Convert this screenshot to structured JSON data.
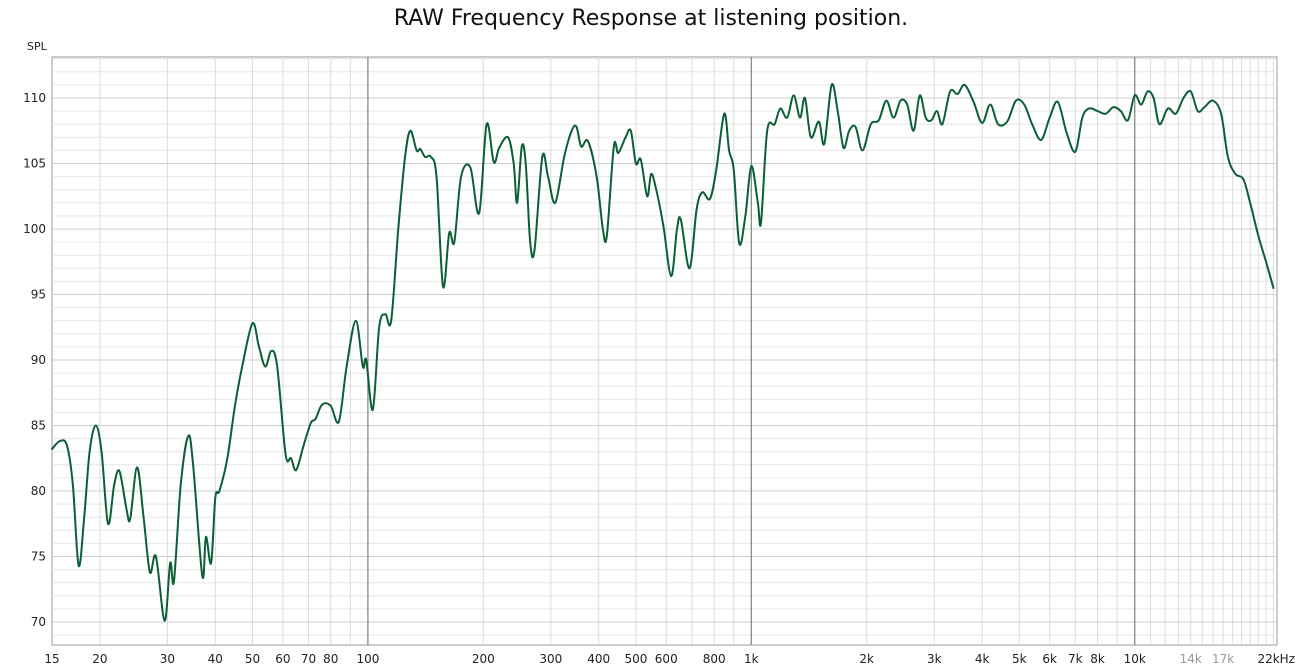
{
  "chart_data": {
    "type": "line",
    "title": "RAW Frequency Response at listening position.",
    "ylabel": "SPL",
    "xlabel": "",
    "xscale": "log",
    "xlim": [
      15,
      23500
    ],
    "ylim": [
      68,
      113
    ],
    "grid": true,
    "yticks": [
      70,
      75,
      80,
      85,
      90,
      95,
      100,
      105,
      110
    ],
    "xtick_labels": [
      {
        "value": 15,
        "label": "15",
        "muted": false
      },
      {
        "value": 20,
        "label": "20",
        "muted": false
      },
      {
        "value": 30,
        "label": "30",
        "muted": false
      },
      {
        "value": 40,
        "label": "40",
        "muted": false
      },
      {
        "value": 50,
        "label": "50",
        "muted": false
      },
      {
        "value": 60,
        "label": "60",
        "muted": false
      },
      {
        "value": 70,
        "label": "70",
        "muted": false
      },
      {
        "value": 80,
        "label": "80",
        "muted": false
      },
      {
        "value": 100,
        "label": "100",
        "muted": false
      },
      {
        "value": 200,
        "label": "200",
        "muted": false
      },
      {
        "value": 300,
        "label": "300",
        "muted": false
      },
      {
        "value": 400,
        "label": "400",
        "muted": false
      },
      {
        "value": 500,
        "label": "500",
        "muted": false
      },
      {
        "value": 600,
        "label": "600",
        "muted": false
      },
      {
        "value": 800,
        "label": "800",
        "muted": false
      },
      {
        "value": 1000,
        "label": "1k",
        "muted": false
      },
      {
        "value": 2000,
        "label": "2k",
        "muted": false
      },
      {
        "value": 3000,
        "label": "3k",
        "muted": false
      },
      {
        "value": 4000,
        "label": "4k",
        "muted": false
      },
      {
        "value": 5000,
        "label": "5k",
        "muted": false
      },
      {
        "value": 6000,
        "label": "6k",
        "muted": false
      },
      {
        "value": 7000,
        "label": "7k",
        "muted": false
      },
      {
        "value": 8000,
        "label": "8k",
        "muted": false
      },
      {
        "value": 10000,
        "label": "10k",
        "muted": false
      },
      {
        "value": 14000,
        "label": "14k",
        "muted": true
      },
      {
        "value": 17000,
        "label": "17k",
        "muted": true
      },
      {
        "value": 22000,
        "label": "22kHz",
        "muted": false
      }
    ],
    "line_color": "#0b5e36",
    "series": [
      {
        "name": "",
        "points": [
          [
            15,
            83.2
          ],
          [
            15.7,
            83.8
          ],
          [
            16.4,
            83.5
          ],
          [
            17.0,
            80.5
          ],
          [
            17.6,
            74.3
          ],
          [
            18.2,
            78.0
          ],
          [
            18.8,
            83.0
          ],
          [
            19.5,
            85.0
          ],
          [
            20.2,
            83.0
          ],
          [
            21.0,
            77.5
          ],
          [
            21.8,
            80.5
          ],
          [
            22.5,
            81.5
          ],
          [
            23.5,
            78.5
          ],
          [
            24.0,
            77.9
          ],
          [
            25.0,
            81.8
          ],
          [
            26.0,
            78.0
          ],
          [
            27.0,
            73.8
          ],
          [
            28.0,
            75.0
          ],
          [
            29.5,
            70.1
          ],
          [
            30.5,
            74.5
          ],
          [
            31.2,
            73.1
          ],
          [
            32.5,
            80.5
          ],
          [
            34.0,
            84.2
          ],
          [
            35.0,
            82.0
          ],
          [
            37.0,
            73.5
          ],
          [
            37.8,
            76.5
          ],
          [
            39.0,
            74.5
          ],
          [
            40.0,
            79.5
          ],
          [
            41.0,
            80.0
          ],
          [
            43.0,
            82.5
          ],
          [
            45.0,
            86.5
          ],
          [
            47.0,
            89.5
          ],
          [
            50.0,
            92.8
          ],
          [
            52.0,
            91.0
          ],
          [
            54.0,
            89.5
          ],
          [
            56.0,
            90.7
          ],
          [
            58.0,
            89.5
          ],
          [
            61.0,
            82.8
          ],
          [
            63.0,
            82.5
          ],
          [
            65.0,
            81.6
          ],
          [
            68.0,
            83.5
          ],
          [
            71.0,
            85.2
          ],
          [
            73.0,
            85.5
          ],
          [
            76.0,
            86.6
          ],
          [
            80.0,
            86.5
          ],
          [
            84.0,
            85.3
          ],
          [
            88.0,
            89.5
          ],
          [
            93.0,
            93.0
          ],
          [
            97.0,
            89.5
          ],
          [
            99.0,
            90.0
          ],
          [
            103.0,
            86.2
          ],
          [
            107.0,
            92.5
          ],
          [
            111.0,
            93.5
          ],
          [
            115.0,
            93.0
          ],
          [
            120.0,
            100.0
          ],
          [
            125.0,
            105.5
          ],
          [
            129.0,
            107.5
          ],
          [
            134.0,
            106.0
          ],
          [
            137.0,
            106.1
          ],
          [
            141.0,
            105.5
          ],
          [
            146.0,
            105.5
          ],
          [
            151.0,
            104.0
          ],
          [
            157.0,
            95.6
          ],
          [
            163.0,
            99.7
          ],
          [
            168.0,
            99.0
          ],
          [
            175.0,
            104.0
          ],
          [
            185.0,
            104.7
          ],
          [
            195.0,
            101.2
          ],
          [
            204.0,
            108.0
          ],
          [
            213.0,
            105.1
          ],
          [
            220.0,
            106.2
          ],
          [
            232.0,
            107.0
          ],
          [
            240.0,
            105.0
          ],
          [
            245.0,
            102.0
          ],
          [
            252.0,
            106.3
          ],
          [
            258.0,
            105.0
          ],
          [
            265.0,
            99.0
          ],
          [
            272.0,
            98.4
          ],
          [
            285.0,
            105.5
          ],
          [
            295.0,
            104.0
          ],
          [
            308.0,
            102.0
          ],
          [
            325.0,
            105.5
          ],
          [
            340.0,
            107.5
          ],
          [
            350.0,
            107.8
          ],
          [
            360.0,
            106.3
          ],
          [
            375.0,
            106.7
          ],
          [
            395.0,
            104.0
          ],
          [
            410.0,
            100.0
          ],
          [
            420.0,
            99.5
          ],
          [
            438.0,
            106.3
          ],
          [
            450.0,
            105.8
          ],
          [
            470.0,
            107.0
          ],
          [
            485.0,
            107.5
          ],
          [
            500.0,
            105.0
          ],
          [
            515.0,
            105.3
          ],
          [
            535.0,
            102.5
          ],
          [
            548.0,
            104.2
          ],
          [
            565.0,
            103.0
          ],
          [
            590.0,
            100.2
          ],
          [
            618.0,
            96.4
          ],
          [
            640.0,
            100.0
          ],
          [
            655.0,
            100.7
          ],
          [
            690.0,
            97.0
          ],
          [
            720.0,
            101.5
          ],
          [
            745.0,
            102.8
          ],
          [
            780.0,
            102.3
          ],
          [
            810.0,
            104.5
          ],
          [
            850.0,
            108.8
          ],
          [
            875.0,
            106.0
          ],
          [
            900.0,
            104.5
          ],
          [
            930.0,
            98.9
          ],
          [
            965.0,
            101.0
          ],
          [
            1000.0,
            104.8
          ],
          [
            1040.0,
            102.0
          ],
          [
            1060.0,
            100.5
          ],
          [
            1100.0,
            107.5
          ],
          [
            1150.0,
            108.0
          ],
          [
            1190.0,
            109.2
          ],
          [
            1240.0,
            108.5
          ],
          [
            1290.0,
            110.2
          ],
          [
            1340.0,
            108.5
          ],
          [
            1380.0,
            110.0
          ],
          [
            1430.0,
            107.0
          ],
          [
            1500.0,
            108.2
          ],
          [
            1550.0,
            106.5
          ],
          [
            1620.0,
            111.0
          ],
          [
            1680.0,
            109.0
          ],
          [
            1740.0,
            106.2
          ],
          [
            1800.0,
            107.5
          ],
          [
            1870.0,
            107.8
          ],
          [
            1950.0,
            106.0
          ],
          [
            2050.0,
            108.0
          ],
          [
            2150.0,
            108.3
          ],
          [
            2250.0,
            109.8
          ],
          [
            2350.0,
            108.5
          ],
          [
            2450.0,
            109.8
          ],
          [
            2550.0,
            109.5
          ],
          [
            2650.0,
            107.5
          ],
          [
            2750.0,
            110.2
          ],
          [
            2850.0,
            108.5
          ],
          [
            2950.0,
            108.3
          ],
          [
            3050.0,
            109.0
          ],
          [
            3150.0,
            108.0
          ],
          [
            3300.0,
            110.5
          ],
          [
            3450.0,
            110.3
          ],
          [
            3600.0,
            111.0
          ],
          [
            3800.0,
            109.7
          ],
          [
            4000.0,
            108.1
          ],
          [
            4200.0,
            109.5
          ],
          [
            4400.0,
            108.0
          ],
          [
            4650.0,
            108.2
          ],
          [
            4900.0,
            109.8
          ],
          [
            5150.0,
            109.5
          ],
          [
            5400.0,
            108.0
          ],
          [
            5700.0,
            106.8
          ],
          [
            6000.0,
            108.5
          ],
          [
            6300.0,
            109.7
          ],
          [
            6650.0,
            107.3
          ],
          [
            7000.0,
            105.9
          ],
          [
            7300.0,
            108.5
          ],
          [
            7600.0,
            109.2
          ],
          [
            8000.0,
            109.0
          ],
          [
            8400.0,
            108.8
          ],
          [
            8800.0,
            109.3
          ],
          [
            9200.0,
            109.0
          ],
          [
            9600.0,
            108.3
          ],
          [
            10000.0,
            110.2
          ],
          [
            10400.0,
            109.5
          ],
          [
            10800.0,
            110.5
          ],
          [
            11200.0,
            110.0
          ],
          [
            11600.0,
            108.0
          ],
          [
            12200.0,
            109.2
          ],
          [
            12800.0,
            108.8
          ],
          [
            13400.0,
            110.0
          ],
          [
            14000.0,
            110.5
          ],
          [
            14600.0,
            109.0
          ],
          [
            15200.0,
            109.3
          ],
          [
            16000.0,
            109.8
          ],
          [
            16800.0,
            108.8
          ],
          [
            17500.0,
            105.5
          ],
          [
            18300.0,
            104.2
          ],
          [
            19200.0,
            103.8
          ],
          [
            20000.0,
            102.0
          ],
          [
            21000.0,
            99.5
          ],
          [
            22000.0,
            97.5
          ],
          [
            23000.0,
            95.5
          ]
        ]
      }
    ]
  }
}
